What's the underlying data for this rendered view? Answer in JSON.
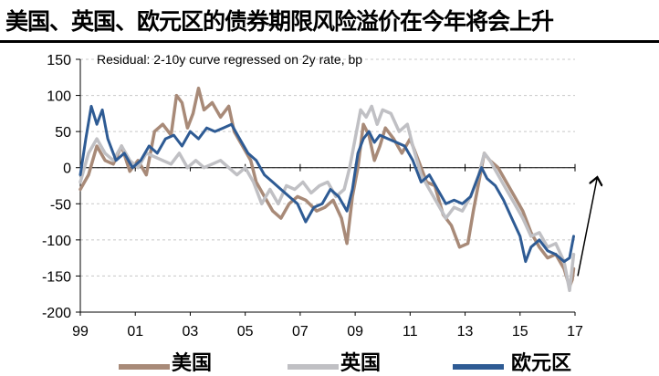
{
  "header": {
    "title": "美国、英国、欧元区的债券期限风险溢价在今年将会上升"
  },
  "chart_data": {
    "type": "line",
    "annotation": "Residual: 2-10y curve regressed on 2y rate, bp",
    "ylim": [
      -200,
      150
    ],
    "y_ticks": [
      -200,
      -150,
      -100,
      -50,
      0,
      50,
      100,
      150
    ],
    "x_range": [
      1999.0,
      2017.0
    ],
    "x_ticks": [
      {
        "year": 1999,
        "label": "99"
      },
      {
        "year": 2001,
        "label": "01"
      },
      {
        "year": 2003,
        "label": "03"
      },
      {
        "year": 2005,
        "label": "05"
      },
      {
        "year": 2007,
        "label": "07"
      },
      {
        "year": 2009,
        "label": "09"
      },
      {
        "year": 2011,
        "label": "11"
      },
      {
        "year": 2013,
        "label": "13"
      },
      {
        "year": 2015,
        "label": "15"
      },
      {
        "year": 2017,
        "label": "17"
      }
    ],
    "grid": "horizontal dashed",
    "series": [
      {
        "name": "美国",
        "color": "#a88a78",
        "points": [
          [
            1999.0,
            -30
          ],
          [
            1999.3,
            -10
          ],
          [
            1999.6,
            30
          ],
          [
            1999.9,
            10
          ],
          [
            2000.2,
            5
          ],
          [
            2000.5,
            30
          ],
          [
            2000.8,
            -5
          ],
          [
            2001.1,
            10
          ],
          [
            2001.4,
            -10
          ],
          [
            2001.7,
            50
          ],
          [
            2002.0,
            60
          ],
          [
            2002.3,
            45
          ],
          [
            2002.5,
            100
          ],
          [
            2002.7,
            90
          ],
          [
            2002.9,
            55
          ],
          [
            2003.1,
            75
          ],
          [
            2003.3,
            110
          ],
          [
            2003.5,
            80
          ],
          [
            2003.8,
            90
          ],
          [
            2004.1,
            70
          ],
          [
            2004.4,
            85
          ],
          [
            2004.6,
            50
          ],
          [
            2004.9,
            30
          ],
          [
            2005.2,
            10
          ],
          [
            2005.4,
            -20
          ],
          [
            2005.7,
            -40
          ],
          [
            2006.0,
            -60
          ],
          [
            2006.3,
            -70
          ],
          [
            2006.6,
            -50
          ],
          [
            2006.9,
            -40
          ],
          [
            2007.2,
            -45
          ],
          [
            2007.6,
            -60
          ],
          [
            2007.9,
            -55
          ],
          [
            2008.2,
            -45
          ],
          [
            2008.5,
            -70
          ],
          [
            2008.7,
            -105
          ],
          [
            2008.9,
            -40
          ],
          [
            2009.1,
            0
          ],
          [
            2009.3,
            60
          ],
          [
            2009.5,
            45
          ],
          [
            2009.7,
            10
          ],
          [
            2009.9,
            30
          ],
          [
            2010.1,
            55
          ],
          [
            2010.4,
            40
          ],
          [
            2010.7,
            20
          ],
          [
            2011.0,
            40
          ],
          [
            2011.3,
            10
          ],
          [
            2011.6,
            -20
          ],
          [
            2011.9,
            -25
          ],
          [
            2012.2,
            -65
          ],
          [
            2012.5,
            -80
          ],
          [
            2012.8,
            -110
          ],
          [
            2013.1,
            -105
          ],
          [
            2013.3,
            -60
          ],
          [
            2013.5,
            -20
          ],
          [
            2013.7,
            20
          ],
          [
            2013.9,
            10
          ],
          [
            2014.2,
            0
          ],
          [
            2014.5,
            -20
          ],
          [
            2014.8,
            -40
          ],
          [
            2015.1,
            -60
          ],
          [
            2015.4,
            -90
          ],
          [
            2015.7,
            -110
          ],
          [
            2016.0,
            -125
          ],
          [
            2016.3,
            -120
          ],
          [
            2016.6,
            -140
          ],
          [
            2016.8,
            -165
          ],
          [
            2016.9,
            -155
          ],
          [
            2016.95,
            -140
          ]
        ]
      },
      {
        "name": "英国",
        "color": "#c0c0c4",
        "points": [
          [
            1999.0,
            -20
          ],
          [
            1999.3,
            20
          ],
          [
            1999.6,
            40
          ],
          [
            1999.9,
            20
          ],
          [
            2000.2,
            10
          ],
          [
            2000.5,
            30
          ],
          [
            2000.8,
            10
          ],
          [
            2001.1,
            0
          ],
          [
            2001.4,
            20
          ],
          [
            2001.7,
            15
          ],
          [
            2002.0,
            10
          ],
          [
            2002.3,
            5
          ],
          [
            2002.6,
            20
          ],
          [
            2002.9,
            0
          ],
          [
            2003.2,
            10
          ],
          [
            2003.5,
            0
          ],
          [
            2003.8,
            5
          ],
          [
            2004.1,
            10
          ],
          [
            2004.4,
            0
          ],
          [
            2004.7,
            -10
          ],
          [
            2005.0,
            0
          ],
          [
            2005.3,
            -20
          ],
          [
            2005.6,
            -50
          ],
          [
            2005.9,
            -30
          ],
          [
            2006.2,
            -50
          ],
          [
            2006.5,
            -25
          ],
          [
            2006.8,
            -30
          ],
          [
            2007.1,
            -20
          ],
          [
            2007.4,
            -35
          ],
          [
            2007.7,
            -25
          ],
          [
            2008.0,
            -20
          ],
          [
            2008.3,
            -40
          ],
          [
            2008.6,
            -30
          ],
          [
            2008.8,
            0
          ],
          [
            2009.0,
            40
          ],
          [
            2009.2,
            80
          ],
          [
            2009.4,
            70
          ],
          [
            2009.6,
            85
          ],
          [
            2009.8,
            60
          ],
          [
            2010.0,
            80
          ],
          [
            2010.3,
            75
          ],
          [
            2010.6,
            50
          ],
          [
            2010.9,
            60
          ],
          [
            2011.1,
            30
          ],
          [
            2011.4,
            -10
          ],
          [
            2011.7,
            -30
          ],
          [
            2012.0,
            -50
          ],
          [
            2012.3,
            -70
          ],
          [
            2012.6,
            -55
          ],
          [
            2012.9,
            -60
          ],
          [
            2013.2,
            -40
          ],
          [
            2013.5,
            -10
          ],
          [
            2013.7,
            20
          ],
          [
            2013.9,
            10
          ],
          [
            2014.2,
            -10
          ],
          [
            2014.5,
            -30
          ],
          [
            2014.8,
            -50
          ],
          [
            2015.1,
            -70
          ],
          [
            2015.4,
            -95
          ],
          [
            2015.7,
            -90
          ],
          [
            2016.0,
            -110
          ],
          [
            2016.3,
            -105
          ],
          [
            2016.6,
            -130
          ],
          [
            2016.8,
            -170
          ],
          [
            2016.95,
            -120
          ]
        ]
      },
      {
        "name": "欧元区",
        "color": "#2e5b94",
        "points": [
          [
            1999.0,
            -10
          ],
          [
            1999.2,
            40
          ],
          [
            1999.4,
            85
          ],
          [
            1999.6,
            60
          ],
          [
            1999.8,
            80
          ],
          [
            2000.0,
            40
          ],
          [
            2000.3,
            10
          ],
          [
            2000.6,
            20
          ],
          [
            2000.9,
            0
          ],
          [
            2001.2,
            10
          ],
          [
            2001.5,
            30
          ],
          [
            2001.8,
            20
          ],
          [
            2002.1,
            40
          ],
          [
            2002.4,
            45
          ],
          [
            2002.7,
            30
          ],
          [
            2003.0,
            50
          ],
          [
            2003.3,
            40
          ],
          [
            2003.6,
            55
          ],
          [
            2003.9,
            50
          ],
          [
            2004.2,
            55
          ],
          [
            2004.5,
            60
          ],
          [
            2004.8,
            40
          ],
          [
            2005.1,
            20
          ],
          [
            2005.4,
            10
          ],
          [
            2005.7,
            -10
          ],
          [
            2006.0,
            -20
          ],
          [
            2006.3,
            -30
          ],
          [
            2006.6,
            -40
          ],
          [
            2006.9,
            -50
          ],
          [
            2007.2,
            -75
          ],
          [
            2007.5,
            -55
          ],
          [
            2007.8,
            -50
          ],
          [
            2008.1,
            -30
          ],
          [
            2008.4,
            -40
          ],
          [
            2008.7,
            -60
          ],
          [
            2008.9,
            -30
          ],
          [
            2009.1,
            20
          ],
          [
            2009.3,
            40
          ],
          [
            2009.5,
            50
          ],
          [
            2009.7,
            35
          ],
          [
            2009.9,
            45
          ],
          [
            2010.2,
            40
          ],
          [
            2010.5,
            35
          ],
          [
            2010.8,
            30
          ],
          [
            2011.1,
            10
          ],
          [
            2011.4,
            -20
          ],
          [
            2011.7,
            -10
          ],
          [
            2012.0,
            -30
          ],
          [
            2012.3,
            -50
          ],
          [
            2012.6,
            -45
          ],
          [
            2012.9,
            -50
          ],
          [
            2013.2,
            -40
          ],
          [
            2013.4,
            -20
          ],
          [
            2013.6,
            0
          ],
          [
            2013.8,
            -15
          ],
          [
            2014.1,
            -25
          ],
          [
            2014.4,
            -45
          ],
          [
            2014.7,
            -70
          ],
          [
            2015.0,
            -95
          ],
          [
            2015.2,
            -130
          ],
          [
            2015.4,
            -110
          ],
          [
            2015.7,
            -100
          ],
          [
            2016.0,
            -115
          ],
          [
            2016.3,
            -120
          ],
          [
            2016.6,
            -130
          ],
          [
            2016.8,
            -125
          ],
          [
            2016.95,
            -95
          ]
        ]
      }
    ],
    "forecast_arrow": {
      "from": [
        2017.1,
        -150
      ],
      "to": [
        2017.8,
        -15
      ]
    }
  }
}
